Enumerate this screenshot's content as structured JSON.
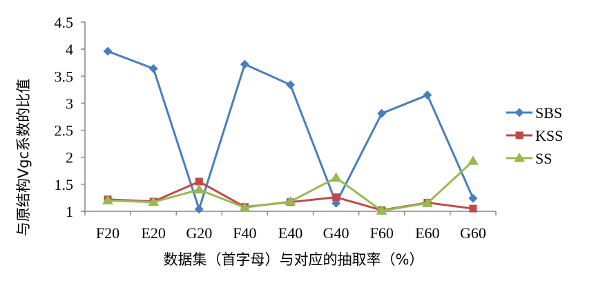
{
  "chart_data": {
    "type": "line",
    "title": "",
    "xlabel": "数据集（首字母）与对应的抽取率（%）",
    "ylabel": "与原结构Vgc系数的比值",
    "categories": [
      "F20",
      "E20",
      "G20",
      "F40",
      "E40",
      "G40",
      "F60",
      "E60",
      "G60"
    ],
    "ylim": [
      1,
      4.5
    ],
    "yticks": [
      "1",
      "1.5",
      "2",
      "2.5",
      "3",
      "3.5",
      "4",
      "4.5"
    ],
    "grid": false,
    "legend_position": "right",
    "series": [
      {
        "name": "SBS",
        "color": "#4a7ebb",
        "marker": "diamond",
        "values": [
          3.96,
          3.64,
          1.04,
          3.72,
          3.34,
          1.15,
          2.81,
          3.15,
          1.24
        ]
      },
      {
        "name": "KSS",
        "color": "#be4b48",
        "marker": "square",
        "values": [
          1.22,
          1.18,
          1.55,
          1.08,
          1.17,
          1.26,
          1.02,
          1.16,
          1.05
        ]
      },
      {
        "name": "SS",
        "color": "#98b954",
        "marker": "triangle",
        "values": [
          1.2,
          1.17,
          1.4,
          1.07,
          1.18,
          1.62,
          1.01,
          1.15,
          1.93
        ]
      }
    ]
  }
}
